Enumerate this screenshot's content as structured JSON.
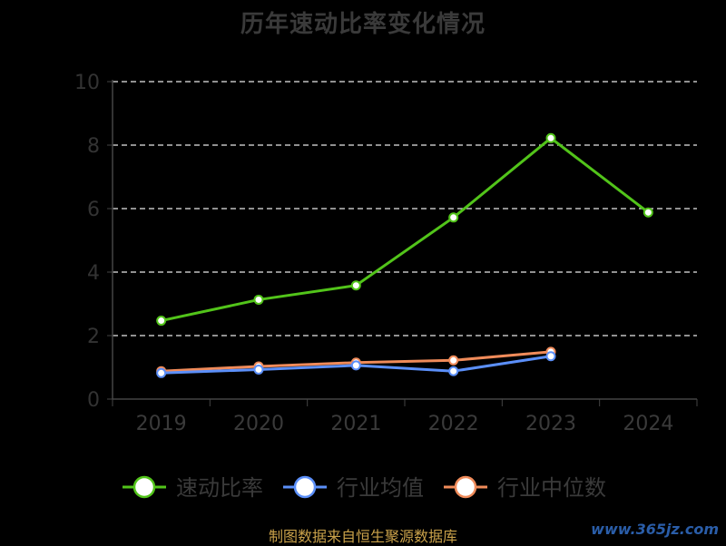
{
  "chart_data": {
    "type": "line",
    "title": "历年速动比率变化情况",
    "categories": [
      "2019",
      "2020",
      "2021",
      "2022",
      "2023",
      "2024"
    ],
    "ylim": [
      0,
      10
    ],
    "yticks": [
      0,
      2,
      4,
      6,
      8,
      10
    ],
    "grid": true,
    "legend_position": "bottom",
    "series": [
      {
        "name": "速动比率",
        "color": "#52c41a",
        "values": [
          2.47,
          3.13,
          3.58,
          5.72,
          8.22,
          5.88
        ]
      },
      {
        "name": "行业均值",
        "color": "#5b8ff9",
        "values": [
          0.82,
          0.93,
          1.06,
          0.88,
          1.35,
          null
        ]
      },
      {
        "name": "行业中位数",
        "color": "#f08b5a",
        "values": [
          0.88,
          1.03,
          1.15,
          1.22,
          1.49,
          null
        ]
      }
    ]
  },
  "footer": "制图数据来自恒生聚源数据库",
  "watermark": "www.365jz.com"
}
